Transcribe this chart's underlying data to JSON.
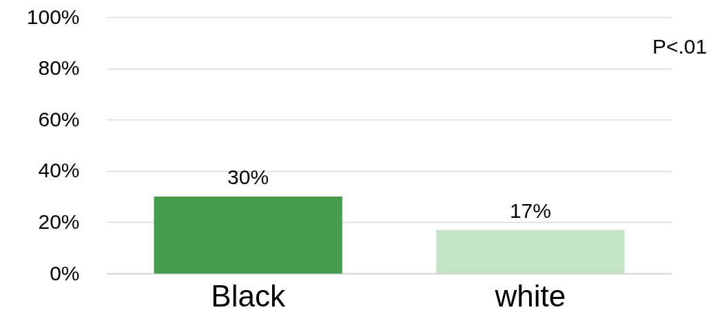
{
  "chart_data": {
    "type": "bar",
    "categories": [
      "Black",
      "white"
    ],
    "values": [
      30,
      17
    ],
    "colors": [
      "#449c4c",
      "#c3e5c6"
    ],
    "value_labels": [
      "30%",
      "17%"
    ],
    "ylim": [
      0,
      100
    ],
    "yticks": [
      {
        "value": 0,
        "label": "0%"
      },
      {
        "value": 20,
        "label": "20%"
      },
      {
        "value": 40,
        "label": "40%"
      },
      {
        "value": 60,
        "label": "60%"
      },
      {
        "value": 80,
        "label": "80%"
      },
      {
        "value": 100,
        "label": "100%"
      }
    ],
    "grid": "y",
    "annotations": [
      "P<.01"
    ]
  }
}
